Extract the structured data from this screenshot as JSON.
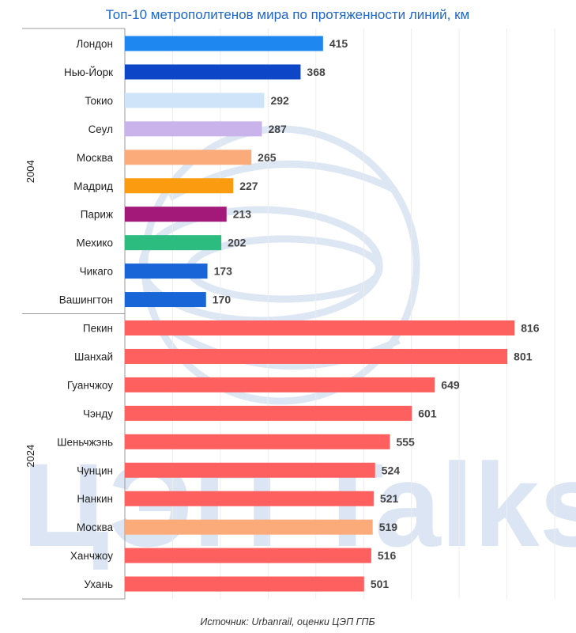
{
  "chart_data": {
    "type": "bar",
    "orientation": "horizontal",
    "title": "Топ-10 метрополитенов мира по протяженности линий, км",
    "source": "Источник: Urbanrail, оценки ЦЭП ГПБ",
    "watermark": "ЦЭП Talks",
    "xlim": [
      0,
      900
    ],
    "grid": true,
    "groups": [
      {
        "label": "2004",
        "bars": [
          {
            "category": "Лондон",
            "value": 415,
            "color": "#1e88f0"
          },
          {
            "category": "Нью-Йорк",
            "value": 368,
            "color": "#0d47c8"
          },
          {
            "category": "Токио",
            "value": 292,
            "color": "#cfe4f8"
          },
          {
            "category": "Сеул",
            "value": 287,
            "color": "#c9b3ea"
          },
          {
            "category": "Москва",
            "value": 265,
            "color": "#fbaa79"
          },
          {
            "category": "Мадрид",
            "value": 227,
            "color": "#fb9b0f"
          },
          {
            "category": "Париж",
            "value": 213,
            "color": "#a3197a"
          },
          {
            "category": "Мехико",
            "value": 202,
            "color": "#2dbc7f"
          },
          {
            "category": "Чикаго",
            "value": 173,
            "color": "#1865d8"
          },
          {
            "category": "Вашингтон",
            "value": 170,
            "color": "#1865d8"
          }
        ]
      },
      {
        "label": "2024",
        "bars": [
          {
            "category": "Пекин",
            "value": 816,
            "color": "#fe5f5f"
          },
          {
            "category": "Шанхай",
            "value": 801,
            "color": "#fe5f5f"
          },
          {
            "category": "Гуанчжоу",
            "value": 649,
            "color": "#fe5f5f"
          },
          {
            "category": "Чэнду",
            "value": 601,
            "color": "#fe5f5f"
          },
          {
            "category": "Шеньчжэнь",
            "value": 555,
            "color": "#fe5f5f"
          },
          {
            "category": "Чунцин",
            "value": 524,
            "color": "#fe5f5f"
          },
          {
            "category": "Нанкин",
            "value": 521,
            "color": "#fe5f5f"
          },
          {
            "category": "Москва",
            "value": 519,
            "color": "#fbaa79"
          },
          {
            "category": "Ханчжоу",
            "value": 516,
            "color": "#fe5f5f"
          },
          {
            "category": "Ухань",
            "value": 501,
            "color": "#fe5f5f"
          }
        ]
      }
    ]
  }
}
